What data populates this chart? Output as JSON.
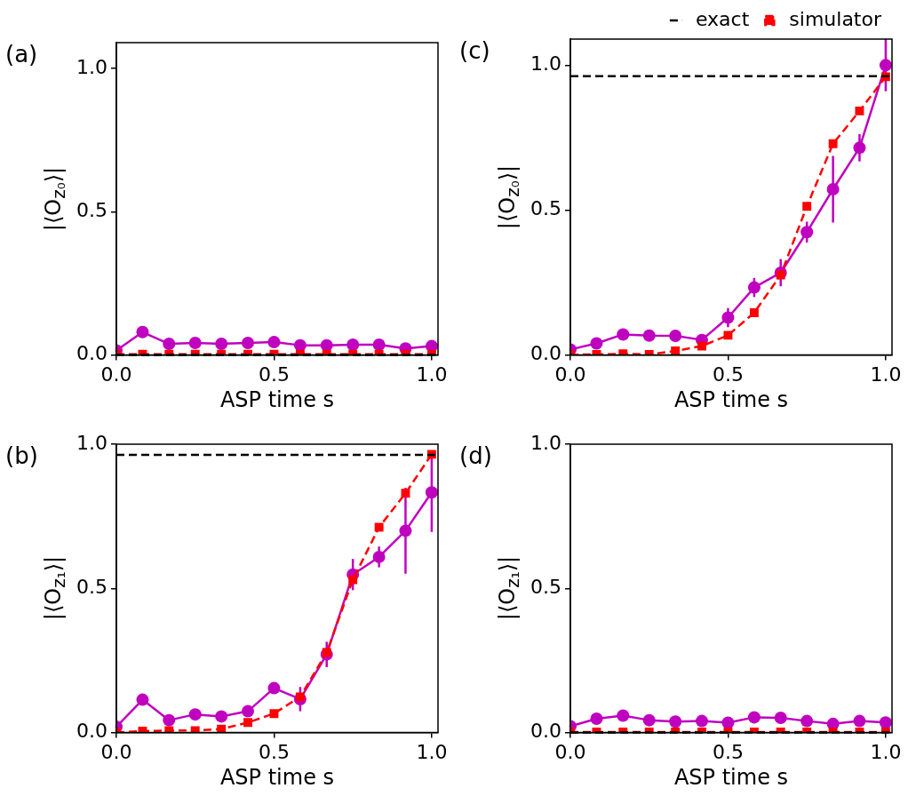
{
  "chart_data": [
    {
      "type": "line",
      "title": "(a)",
      "xlabel": "ASP time s",
      "ylabel": "|⟨O$_{z₀}$⟩|",
      "ref_lines": [
        {
          "axis": "y",
          "value": 0,
          "color": "#000000",
          "line_style": "dashed"
        }
      ],
      "xlim": [
        0,
        1.02
      ],
      "xticks": [
        {
          "value": 0,
          "label": "0.0"
        },
        {
          "value": 0.5,
          "label": "0.5"
        },
        {
          "value": 1,
          "label": "1.0"
        }
      ],
      "ylim": [
        0,
        1.09
      ],
      "yticks": [
        {
          "value": 0,
          "label": "0.0"
        },
        {
          "value": 0.5,
          "label": "0.5"
        },
        {
          "value": 1,
          "label": "1.0"
        }
      ],
      "x": [
        0,
        0.083,
        0.167,
        0.25,
        0.333,
        0.417,
        0.5,
        0.583,
        0.667,
        0.75,
        0.833,
        0.917,
        1
      ],
      "series": [
        {
          "color": "#ff0000",
          "line_style": "dashed",
          "marker": "square",
          "values": [
            0.003,
            0.003,
            0.003,
            0.003,
            0.003,
            0.003,
            0.003,
            0.003,
            0.003,
            0.003,
            0.003,
            0.003,
            0.003
          ]
        },
        {
          "color": "#bf00bf",
          "line_style": "solid",
          "marker": "circle",
          "values": [
            0.016,
            0.08,
            0.039,
            0.042,
            0.039,
            0.042,
            0.045,
            0.034,
            0.034,
            0.036,
            0.036,
            0.023,
            0.031
          ],
          "errors": [
            0.005,
            0.008,
            0.005,
            0.005,
            0.005,
            0.005,
            0.005,
            0.005,
            0.005,
            0.005,
            0.005,
            0.005,
            0.005
          ]
        }
      ]
    },
    {
      "type": "line",
      "title": "(c)",
      "xlabel": "ASP time s",
      "ylabel": "|⟨O$_{z₀}$⟩|",
      "ref_lines": [
        {
          "axis": "y",
          "value": 0.962,
          "label": "exact",
          "color": "#000000",
          "line_style": "dashed"
        }
      ],
      "legend": "top right",
      "xlim": [
        0,
        1.02
      ],
      "xticks": [
        {
          "value": 0,
          "label": "0.0"
        },
        {
          "value": 0.5,
          "label": "0.5"
        },
        {
          "value": 1,
          "label": "1.0"
        }
      ],
      "ylim": [
        0,
        1.09
      ],
      "yticks": [
        {
          "value": 0,
          "label": "0.0"
        },
        {
          "value": 0.5,
          "label": "0.5"
        },
        {
          "value": 1,
          "label": "1.0"
        }
      ],
      "x": [
        0,
        0.083,
        0.167,
        0.25,
        0.333,
        0.417,
        0.5,
        0.583,
        0.667,
        0.75,
        0.833,
        0.917,
        1
      ],
      "series": [
        {
          "name": "simulator",
          "color": "#ff0000",
          "line_style": "dashed",
          "marker": "square",
          "values": [
            0.001,
            0.002,
            0.004,
            0.002,
            0.014,
            0.031,
            0.068,
            0.146,
            0.276,
            0.513,
            0.729,
            0.842,
            0.96
          ]
        },
        {
          "color": "#bf00bf",
          "line_style": "solid",
          "marker": "circle",
          "values": [
            0.019,
            0.04,
            0.071,
            0.067,
            0.066,
            0.052,
            0.129,
            0.233,
            0.284,
            0.424,
            0.572,
            0.715,
            1.0
          ],
          "errors": [
            0.006,
            0.008,
            0.01,
            0.015,
            0.01,
            0.01,
            0.033,
            0.033,
            0.047,
            0.036,
            0.115,
            0.047,
            0.09
          ]
        }
      ]
    },
    {
      "type": "line",
      "title": "(b)",
      "xlabel": "ASP time s",
      "ylabel": "|⟨O$_{z₁}$⟩|",
      "ref_lines": [
        {
          "axis": "y",
          "value": 0.963,
          "color": "#000000",
          "line_style": "dashed"
        }
      ],
      "xlim": [
        0,
        1.02
      ],
      "xticks": [
        {
          "value": 0,
          "label": "0.0"
        },
        {
          "value": 0.5,
          "label": "0.5"
        },
        {
          "value": 1,
          "label": "1.0"
        }
      ],
      "ylim": [
        0,
        1.0
      ],
      "yticks": [
        {
          "value": 0,
          "label": "0.0"
        },
        {
          "value": 0.5,
          "label": "0.5"
        },
        {
          "value": 1,
          "label": "1.0"
        }
      ],
      "x": [
        0,
        0.083,
        0.167,
        0.25,
        0.333,
        0.417,
        0.5,
        0.583,
        0.667,
        0.75,
        0.833,
        0.917,
        1
      ],
      "series": [
        {
          "color": "#ff0000",
          "line_style": "dashed",
          "marker": "square",
          "values": [
            0.001,
            0.005,
            0.007,
            0.007,
            0.012,
            0.035,
            0.066,
            0.124,
            0.278,
            0.53,
            0.712,
            0.83,
            0.965
          ]
        },
        {
          "color": "#bf00bf",
          "line_style": "solid",
          "marker": "circle",
          "values": [
            0.02,
            0.114,
            0.043,
            0.063,
            0.056,
            0.074,
            0.154,
            0.116,
            0.271,
            0.548,
            0.609,
            0.7,
            0.833
          ],
          "errors": [
            0.006,
            0.015,
            0.006,
            0.01,
            0.006,
            0.006,
            0.015,
            0.042,
            0.044,
            0.054,
            0.036,
            0.149,
            0.137
          ]
        }
      ]
    },
    {
      "type": "line",
      "title": "(d)",
      "xlabel": "ASP time s",
      "ylabel": "|⟨O$_{z₁}$⟩|",
      "ref_lines": [
        {
          "axis": "y",
          "value": 0,
          "color": "#000000",
          "line_style": "dashed"
        }
      ],
      "xlim": [
        0,
        1.02
      ],
      "xticks": [
        {
          "value": 0,
          "label": "0.0"
        },
        {
          "value": 0.5,
          "label": "0.5"
        },
        {
          "value": 1,
          "label": "1.0"
        }
      ],
      "ylim": [
        0,
        1.0
      ],
      "yticks": [
        {
          "value": 0,
          "label": "0.0"
        },
        {
          "value": 0.5,
          "label": "0.5"
        },
        {
          "value": 1,
          "label": "1.0"
        }
      ],
      "x": [
        0,
        0.083,
        0.167,
        0.25,
        0.333,
        0.417,
        0.5,
        0.583,
        0.667,
        0.75,
        0.833,
        0.917,
        1
      ],
      "series": [
        {
          "color": "#ff0000",
          "line_style": "dashed",
          "marker": "square",
          "values": [
            0.002,
            0.002,
            0.002,
            0.002,
            0.002,
            0.002,
            0.002,
            0.002,
            0.002,
            0.002,
            0.002,
            0.002,
            0.002
          ]
        },
        {
          "color": "#bf00bf",
          "line_style": "solid",
          "marker": "circle",
          "values": [
            0.022,
            0.048,
            0.059,
            0.043,
            0.038,
            0.04,
            0.034,
            0.053,
            0.051,
            0.04,
            0.03,
            0.04,
            0.035
          ],
          "errors": [
            0.005,
            0.008,
            0.015,
            0.006,
            0.005,
            0.005,
            0.005,
            0.006,
            0.006,
            0.005,
            0.005,
            0.005,
            0.005
          ]
        }
      ]
    }
  ]
}
